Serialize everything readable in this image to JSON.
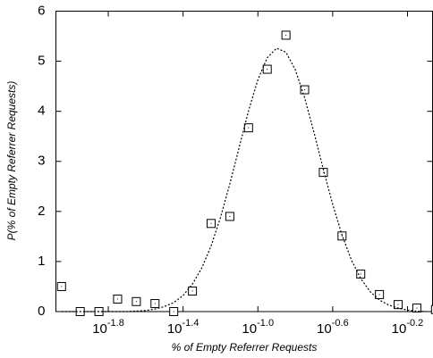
{
  "chart_data": {
    "type": "scatter",
    "xlabel": "% of Empty Referrer Requests",
    "ylabel": "P(% of Empty Referrer Requests)",
    "xlog": true,
    "xlim": [
      0.008318,
      0.859
    ],
    "ylim": [
      0,
      6
    ],
    "xticks": [
      {
        "value": 0.01585,
        "label": "10",
        "sup": "-1.8"
      },
      {
        "value": 0.03981,
        "label": "10",
        "sup": "-1.4"
      },
      {
        "value": 0.1,
        "label": "10",
        "sup": "-1.0"
      },
      {
        "value": 0.2512,
        "label": "10",
        "sup": "-0.6"
      },
      {
        "value": 0.631,
        "label": "10",
        "sup": "-0.2"
      }
    ],
    "yticks": [
      0,
      1,
      2,
      3,
      4,
      5,
      6
    ],
    "series": [
      {
        "type": "scatter",
        "marker": "square",
        "color": "#000000",
        "x": [
          0.008913,
          0.01122,
          0.01413,
          0.01778,
          0.02239,
          0.02818,
          0.03548,
          0.04467,
          0.05623,
          0.07079,
          0.08913,
          0.1122,
          0.1413,
          0.1778,
          0.2239,
          0.2818,
          0.3548,
          0.4467,
          0.5623,
          0.7079,
          0.8913
        ],
        "values": [
          0.5,
          0,
          0,
          0.25,
          0.2,
          0.16,
          0,
          0.41,
          1.76,
          1.9,
          3.67,
          4.84,
          5.52,
          4.43,
          2.78,
          1.51,
          0.75,
          0.34,
          0.14,
          0.07,
          0.04
        ]
      },
      {
        "type": "line",
        "style": "dotted",
        "color": "#000000",
        "x": [
          0.008913,
          0.01,
          0.01122,
          0.01259,
          0.01413,
          0.01585,
          0.01778,
          0.01995,
          0.02239,
          0.02512,
          0.02818,
          0.03162,
          0.03548,
          0.03981,
          0.04467,
          0.05012,
          0.05623,
          0.0631,
          0.07079,
          0.07943,
          0.08913,
          0.1,
          0.1122,
          0.1259,
          0.1413,
          0.1585,
          0.1778,
          0.1995,
          0.2239,
          0.2512,
          0.2818,
          0.3162,
          0.3548,
          0.3981,
          0.4467,
          0.5012,
          0.5623,
          0.631,
          0.7079,
          0.7943
        ],
        "values": [
          0,
          0,
          0,
          0,
          0,
          0,
          0,
          0,
          0.01,
          0.02,
          0.05,
          0.1,
          0.18,
          0.32,
          0.55,
          0.87,
          1.31,
          1.88,
          2.55,
          3.28,
          4.01,
          4.63,
          5.07,
          5.26,
          5.18,
          4.83,
          4.27,
          3.58,
          2.84,
          2.14,
          1.53,
          1.03,
          0.66,
          0.4,
          0.23,
          0.13,
          0.07,
          0.03,
          0.01,
          0
        ]
      }
    ]
  }
}
